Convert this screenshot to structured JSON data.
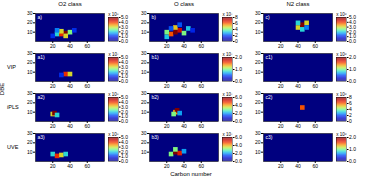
{
  "chart_data": {
    "type": "heatmap_grid",
    "xlabel": "Carbon number",
    "ylabel": "DBE",
    "xlim": [
      0,
      80
    ],
    "ylim": [
      0,
      30
    ],
    "xticks": [
      20,
      40,
      60
    ],
    "yticks": [
      10,
      20,
      30
    ],
    "columns": [
      "O2 class",
      "O class",
      "N2 class"
    ],
    "rows": [
      null,
      "VIP",
      "iPLS",
      "UVE"
    ],
    "panels": [
      {
        "label": "a)",
        "cells": [
          [
            25,
            8,
            2
          ],
          [
            30,
            8,
            4
          ],
          [
            35,
            9,
            5
          ],
          [
            30,
            11,
            3
          ],
          [
            25,
            12,
            1.5
          ],
          [
            40,
            10,
            2.5
          ],
          [
            35,
            6,
            3
          ],
          [
            20,
            6,
            1
          ],
          [
            45,
            12,
            1
          ]
        ],
        "colorbar": {
          "range": [
            0,
            5
          ],
          "ticks": [
            0,
            1,
            2,
            3,
            4,
            5
          ],
          "label": "x 10⁸"
        }
      },
      {
        "label": "b)",
        "cells": [
          [
            20,
            5,
            3
          ],
          [
            25,
            8,
            6
          ],
          [
            30,
            10,
            8
          ],
          [
            35,
            12,
            7
          ],
          [
            30,
            15,
            5
          ],
          [
            40,
            9,
            4
          ],
          [
            45,
            14,
            3
          ],
          [
            25,
            14,
            2
          ],
          [
            35,
            18,
            2
          ],
          [
            50,
            12,
            1.5
          ],
          [
            20,
            10,
            4
          ]
        ],
        "colorbar": {
          "range": [
            0,
            8
          ],
          "ticks": [
            0,
            2,
            4,
            6,
            8
          ],
          "label": "x 10⁷"
        }
      },
      {
        "label": "c)",
        "cells": [
          [
            40,
            15,
            3
          ],
          [
            45,
            18,
            5
          ],
          [
            50,
            20,
            3
          ],
          [
            40,
            20,
            2
          ],
          [
            45,
            13,
            2
          ],
          [
            50,
            15,
            1.5
          ]
        ],
        "colorbar": {
          "range": [
            0,
            5
          ],
          "ticks": [
            0,
            1,
            2,
            3,
            4,
            5
          ],
          "label": "x 10⁶"
        }
      },
      {
        "label": "a1)",
        "cells": [
          [
            35,
            8,
            4
          ],
          [
            40,
            8,
            3
          ],
          [
            30,
            7,
            1
          ]
        ],
        "colorbar": {
          "range": [
            0,
            5
          ],
          "ticks": [
            0,
            1,
            2,
            3,
            4,
            5
          ],
          "label": "x 10⁷"
        }
      },
      {
        "label": "b1)",
        "cells": [],
        "colorbar": {
          "range": [
            0,
            2
          ],
          "ticks": [
            0,
            1,
            2
          ],
          "label": "x 10⁷"
        }
      },
      {
        "label": "c1)",
        "cells": [],
        "colorbar": {
          "range": [
            0,
            2
          ],
          "ticks": [
            0,
            1,
            2
          ],
          "label": "x 10⁶"
        }
      },
      {
        "label": "a2)",
        "cells": [
          [
            20,
            8,
            3
          ],
          [
            22,
            9,
            5
          ],
          [
            25,
            7,
            2
          ]
        ],
        "colorbar": {
          "range": [
            0,
            5
          ],
          "ticks": [
            0,
            1,
            2,
            3,
            4,
            5
          ],
          "label": "x 10⁸"
        }
      },
      {
        "label": "b2)",
        "cells": [
          [
            30,
            10,
            4
          ],
          [
            32,
            12,
            6
          ],
          [
            28,
            8,
            3
          ],
          [
            35,
            9,
            2
          ]
        ],
        "colorbar": {
          "range": [
            0,
            6
          ],
          "ticks": [
            0,
            2,
            4,
            6
          ],
          "label": "x 10⁷"
        }
      },
      {
        "label": "c2)",
        "cells": [
          [
            45,
            15,
            6
          ]
        ],
        "colorbar": {
          "range": [
            0,
            8
          ],
          "ticks": [
            0,
            2,
            4,
            6,
            8
          ],
          "label": "x 10⁶"
        }
      },
      {
        "label": "a3)",
        "cells": [
          [
            20,
            8,
            2
          ],
          [
            25,
            6,
            4
          ],
          [
            30,
            7,
            3
          ],
          [
            35,
            8,
            2
          ]
        ],
        "colorbar": {
          "range": [
            0,
            5
          ],
          "ticks": [
            0,
            1,
            2,
            3,
            4,
            5
          ],
          "label": "x 10⁸"
        }
      },
      {
        "label": "b3)",
        "cells": [
          [
            25,
            8,
            3
          ],
          [
            30,
            10,
            6
          ],
          [
            35,
            9,
            5
          ],
          [
            30,
            13,
            3
          ],
          [
            40,
            11,
            2
          ]
        ],
        "colorbar": {
          "range": [
            0,
            6
          ],
          "ticks": [
            0,
            2,
            4,
            6
          ],
          "label": "x 10⁷"
        }
      },
      {
        "label": "c3)",
        "cells": [],
        "colorbar": {
          "range": [
            0,
            2
          ],
          "ticks": [
            0,
            1,
            2
          ],
          "label": "x 10⁶"
        }
      }
    ]
  }
}
